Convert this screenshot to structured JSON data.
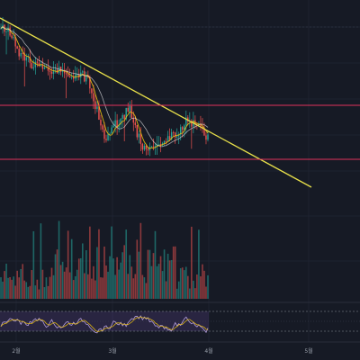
{
  "chart_data": [
    {
      "type": "candlestick",
      "panel": "price",
      "grid": true,
      "colors": {
        "up": "#26a69a",
        "down": "#ef5350",
        "ma_fast": "#f1c40f",
        "ma_slow": "#26a69a",
        "trendline": "#e8e04a",
        "resistance": "#e0325c",
        "support": "#e0325c",
        "background": "#161a25",
        "grid": "#232838"
      },
      "annotations": {
        "trendline": {
          "from": [
            0,
            0.0
          ],
          "to": [
            1,
            1.0
          ],
          "label": ""
        },
        "horizontal_lines": [
          {
            "name": "",
            "level": 0.37
          },
          {
            "name": "",
            "level": 0.73
          }
        ]
      }
    },
    {
      "type": "bar",
      "panel": "volume",
      "label": ""
    },
    {
      "type": "line",
      "panel": "oscillator",
      "bands": {
        "upper": 70,
        "lower": 30
      },
      "range": [
        0,
        100
      ]
    }
  ],
  "x_axis": {
    "ticks": [
      {
        "label": "2월"
      },
      {
        "label": "3월"
      },
      {
        "label": "4월"
      },
      {
        "label": "5월"
      }
    ]
  }
}
